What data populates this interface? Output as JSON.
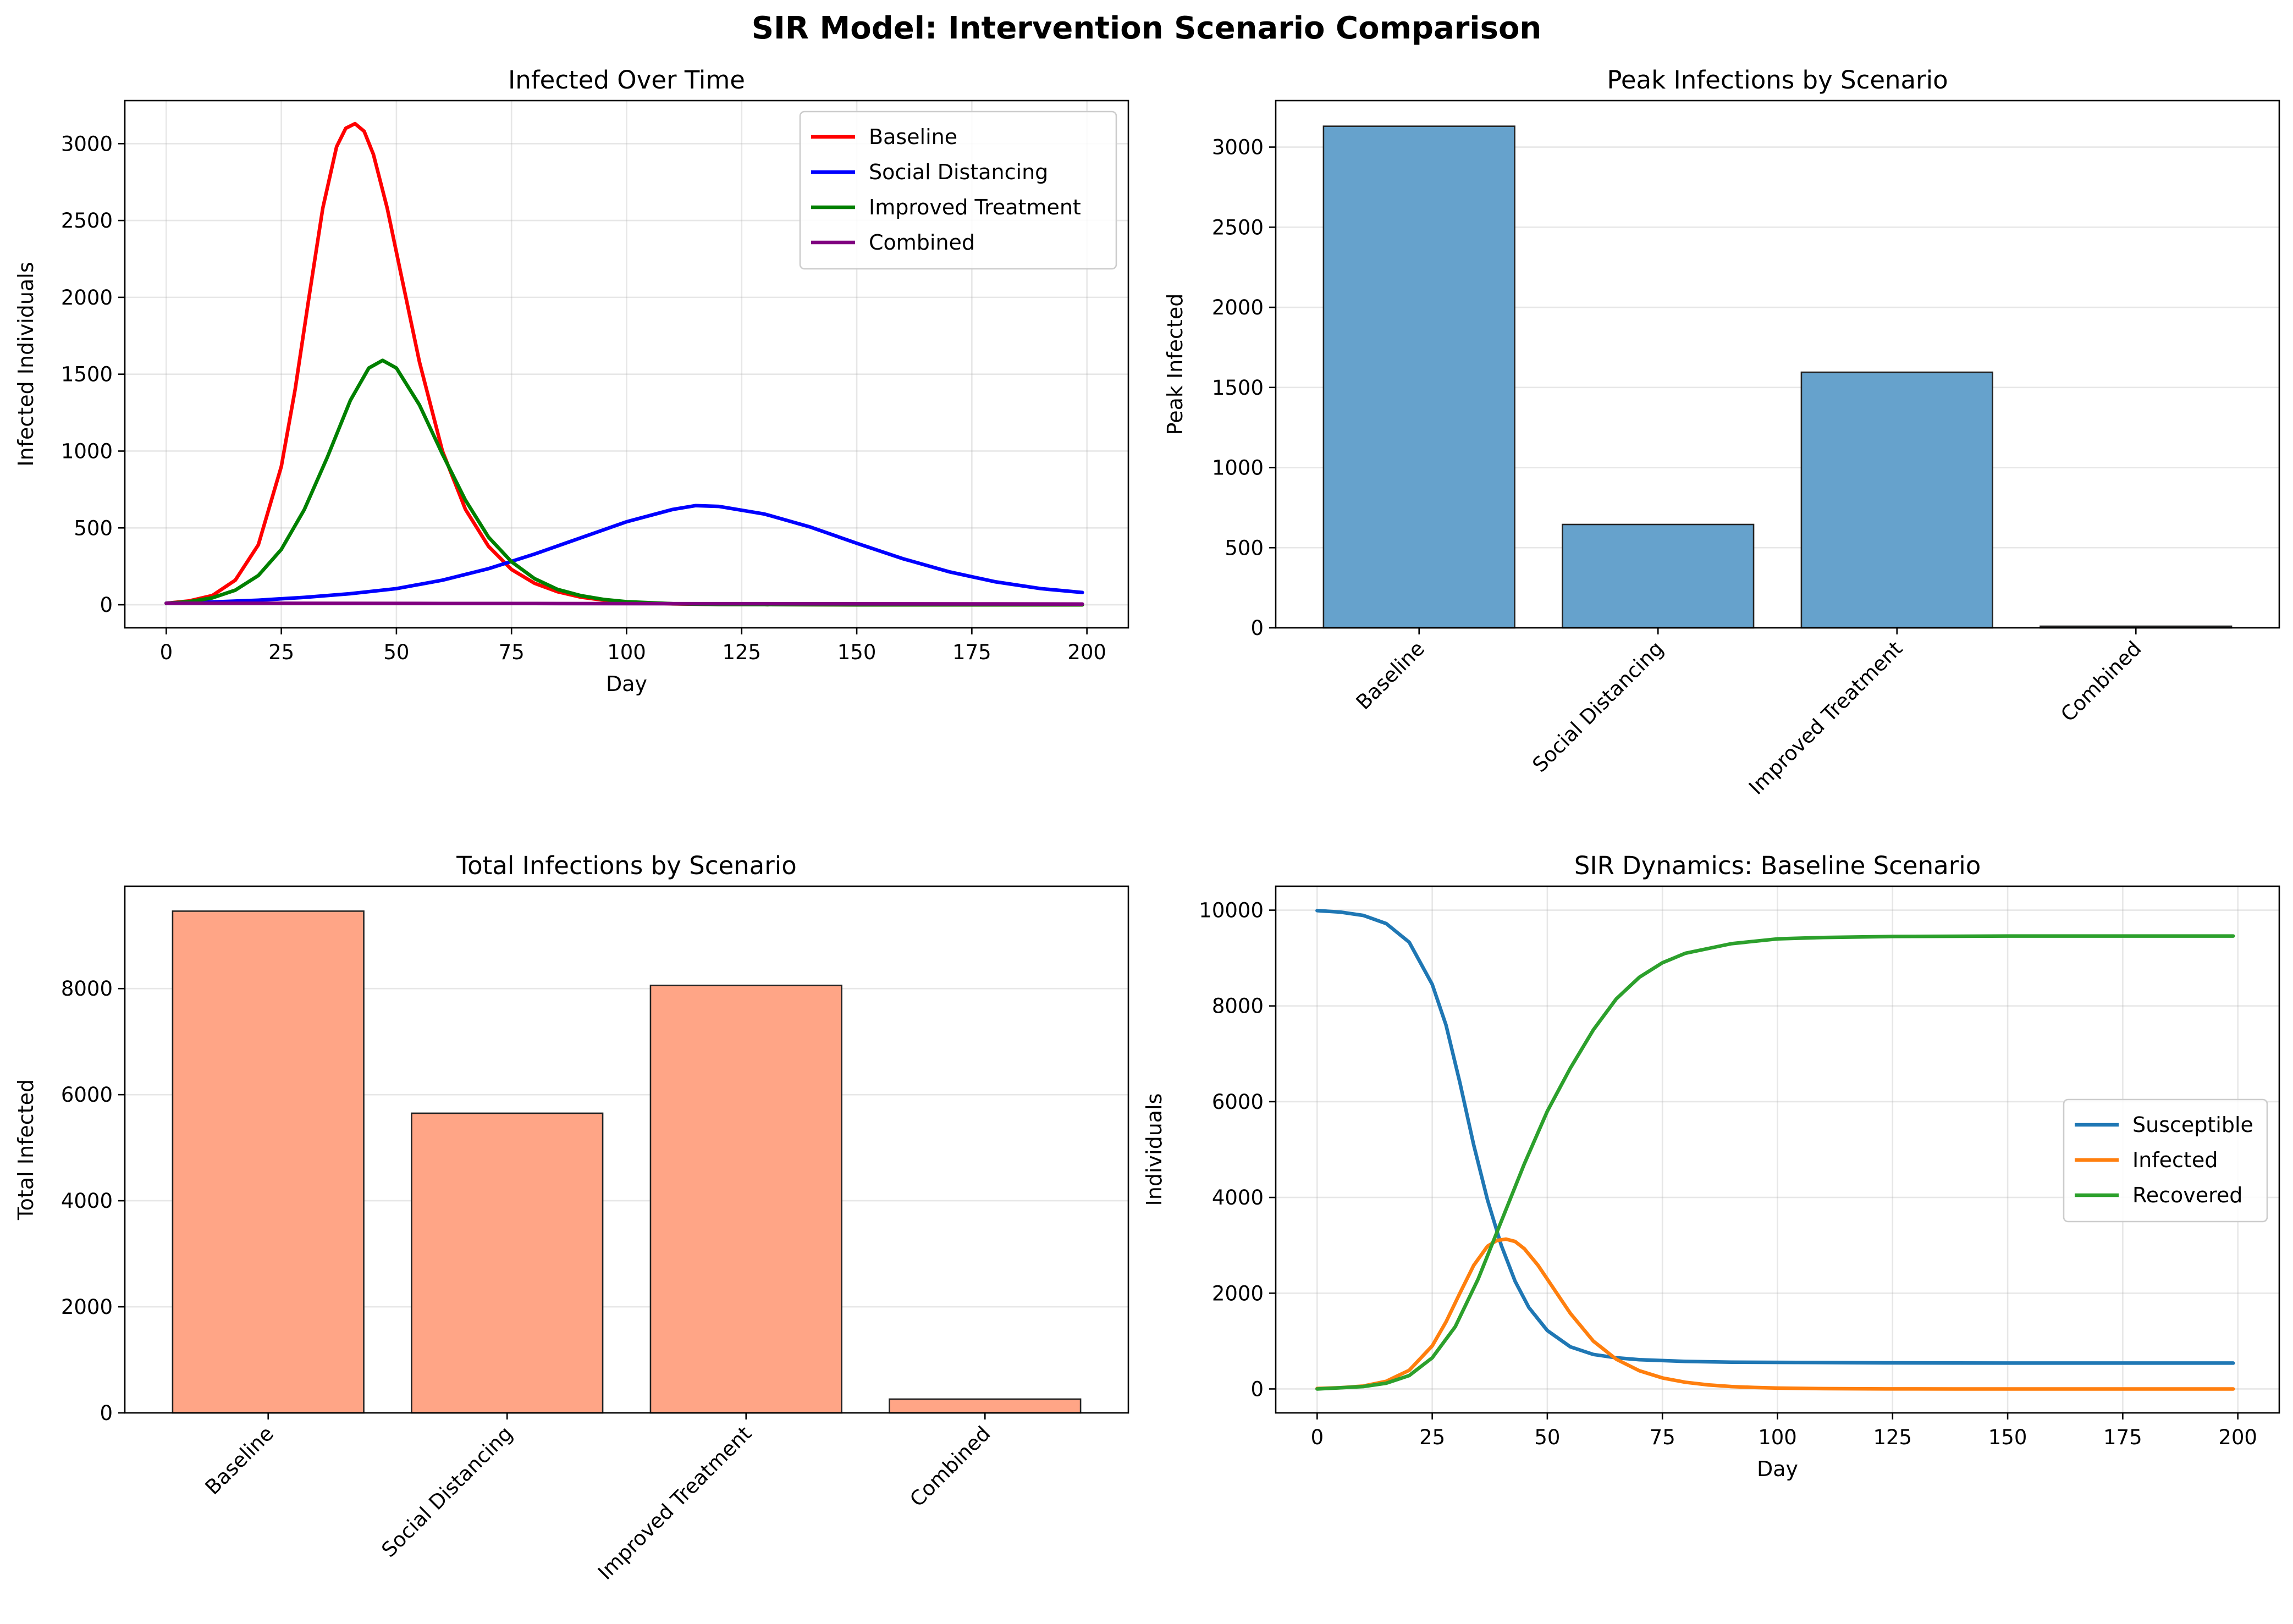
{
  "figure": {
    "title": "SIR Model: Intervention Scenario Comparison"
  },
  "colors": {
    "baseline": "#ff0000",
    "social_distancing": "#0000ff",
    "improved_treatment": "#008000",
    "combined": "#800080",
    "peak_bar": "#66a2cc",
    "total_bar": "#ffa586",
    "susceptible": "#1f77b4",
    "infected": "#ff7f0e",
    "recovered": "#2ca02c"
  },
  "chart_data": [
    {
      "type": "line",
      "title": "Infected Over Time",
      "xlabel": "Day",
      "ylabel": "Infected Individuals",
      "xlim": [
        -9,
        209
      ],
      "ylim": [
        -150,
        3280
      ],
      "xticks": [
        0,
        25,
        50,
        75,
        100,
        125,
        150,
        175,
        200
      ],
      "yticks": [
        0,
        500,
        1000,
        1500,
        2000,
        2500,
        3000
      ],
      "grid": true,
      "legend": "top-right",
      "series": [
        {
          "name": "Baseline",
          "color": "#ff0000",
          "x": [
            0,
            5,
            10,
            15,
            20,
            25,
            28,
            31,
            34,
            37,
            39,
            41,
            43,
            45,
            48,
            51,
            55,
            60,
            65,
            70,
            75,
            80,
            85,
            90,
            95,
            100,
            110,
            120,
            130,
            150,
            175,
            199
          ],
          "y": [
            10,
            25,
            60,
            160,
            390,
            900,
            1400,
            2000,
            2580,
            2980,
            3100,
            3130,
            3080,
            2930,
            2580,
            2150,
            1580,
            1000,
            620,
            380,
            230,
            140,
            85,
            50,
            30,
            18,
            6,
            2,
            1,
            0,
            0,
            0
          ]
        },
        {
          "name": "Social Distancing",
          "color": "#0000ff",
          "x": [
            0,
            10,
            20,
            30,
            40,
            50,
            60,
            70,
            80,
            90,
            100,
            110,
            115,
            120,
            130,
            140,
            150,
            160,
            170,
            180,
            190,
            199
          ],
          "y": [
            10,
            18,
            30,
            48,
            72,
            105,
            160,
            235,
            330,
            435,
            540,
            620,
            645,
            640,
            590,
            505,
            400,
            300,
            215,
            150,
            105,
            80
          ]
        },
        {
          "name": "Improved Treatment",
          "color": "#008000",
          "x": [
            0,
            5,
            10,
            15,
            20,
            25,
            30,
            35,
            40,
            44,
            47,
            50,
            55,
            60,
            65,
            70,
            75,
            80,
            85,
            90,
            95,
            100,
            110,
            120,
            130,
            150,
            175,
            199
          ],
          "y": [
            10,
            20,
            45,
            95,
            190,
            360,
            620,
            960,
            1330,
            1540,
            1590,
            1540,
            1300,
            980,
            680,
            440,
            280,
            170,
            100,
            60,
            35,
            20,
            7,
            2,
            1,
            0,
            0,
            0
          ]
        },
        {
          "name": "Combined",
          "color": "#800080",
          "x": [
            0,
            20,
            40,
            60,
            80,
            100,
            120,
            140,
            160,
            180,
            199
          ],
          "y": [
            10,
            9.5,
            9,
            8.5,
            8,
            7.5,
            7,
            6.5,
            6,
            5.5,
            5
          ]
        }
      ]
    },
    {
      "type": "bar",
      "title": "Peak Infections by Scenario",
      "xlabel": "",
      "ylabel": "Peak Infected",
      "categories": [
        "Baseline",
        "Social Distancing",
        "Improved Treatment",
        "Combined"
      ],
      "values": [
        3130,
        645,
        1595,
        10
      ],
      "ylim": [
        0,
        3290
      ],
      "yticks": [
        0,
        500,
        1000,
        1500,
        2000,
        2500,
        3000
      ],
      "grid": true
    },
    {
      "type": "bar",
      "title": "Total Infections by Scenario",
      "xlabel": "",
      "ylabel": "Total Infected",
      "categories": [
        "Baseline",
        "Social Distancing",
        "Improved Treatment",
        "Combined"
      ],
      "values": [
        9460,
        5650,
        8060,
        260
      ],
      "ylim": [
        0,
        9930
      ],
      "yticks": [
        0,
        2000,
        4000,
        6000,
        8000
      ],
      "grid": true
    },
    {
      "type": "line",
      "title": "SIR Dynamics: Baseline Scenario",
      "xlabel": "Day",
      "ylabel": "Individuals",
      "xlim": [
        -9,
        209
      ],
      "ylim": [
        -500,
        10500
      ],
      "xticks": [
        0,
        25,
        50,
        75,
        100,
        125,
        150,
        175,
        200
      ],
      "yticks": [
        0,
        2000,
        4000,
        6000,
        8000,
        10000
      ],
      "grid": true,
      "legend": "center-right",
      "series": [
        {
          "name": "Susceptible",
          "color": "#1f77b4",
          "x": [
            0,
            5,
            10,
            15,
            20,
            25,
            28,
            31,
            34,
            37,
            40,
            43,
            46,
            50,
            55,
            60,
            65,
            70,
            80,
            90,
            100,
            125,
            150,
            175,
            199
          ],
          "y": [
            9990,
            9960,
            9890,
            9720,
            9330,
            8450,
            7600,
            6400,
            5100,
            3950,
            3000,
            2250,
            1700,
            1220,
            880,
            720,
            650,
            610,
            575,
            560,
            555,
            545,
            540,
            540,
            540
          ]
        },
        {
          "name": "Infected",
          "color": "#ff7f0e",
          "x": [
            0,
            5,
            10,
            15,
            20,
            25,
            28,
            31,
            34,
            37,
            39,
            41,
            43,
            45,
            48,
            51,
            55,
            60,
            65,
            70,
            75,
            80,
            85,
            90,
            95,
            100,
            110,
            120,
            130,
            150,
            175,
            199
          ],
          "y": [
            10,
            25,
            60,
            160,
            390,
            900,
            1400,
            2000,
            2580,
            2980,
            3100,
            3130,
            3080,
            2930,
            2580,
            2150,
            1580,
            1000,
            620,
            380,
            230,
            140,
            85,
            50,
            30,
            18,
            6,
            2,
            1,
            0,
            0,
            0
          ]
        },
        {
          "name": "Recovered",
          "color": "#2ca02c",
          "x": [
            0,
            10,
            15,
            20,
            25,
            30,
            35,
            40,
            45,
            50,
            55,
            60,
            65,
            70,
            75,
            80,
            90,
            100,
            110,
            125,
            150,
            175,
            199
          ],
          "y": [
            0,
            50,
            120,
            280,
            650,
            1300,
            2300,
            3500,
            4700,
            5800,
            6700,
            7500,
            8150,
            8600,
            8900,
            9100,
            9300,
            9400,
            9430,
            9450,
            9460,
            9460,
            9460
          ]
        }
      ]
    }
  ]
}
